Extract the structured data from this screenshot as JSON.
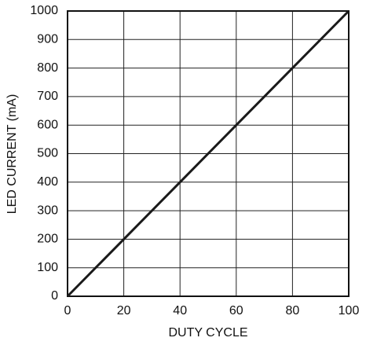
{
  "chart_data": {
    "type": "line",
    "x_label": "DUTY CYCLE",
    "y_label": "LED CURRENT (mA)",
    "x": [
      0,
      20,
      40,
      60,
      80,
      100
    ],
    "series": [
      {
        "color": "#1a1a1a",
        "values": [
          0,
          200,
          400,
          600,
          800,
          1000
        ]
      }
    ],
    "xlim": [
      0,
      100
    ],
    "xticks": [
      0,
      20,
      40,
      60,
      80,
      100
    ],
    "ylim": [
      0,
      1000
    ],
    "yticks": [
      0,
      100,
      200,
      300,
      400,
      500,
      600,
      700,
      800,
      900,
      1000
    ],
    "grid": true
  }
}
